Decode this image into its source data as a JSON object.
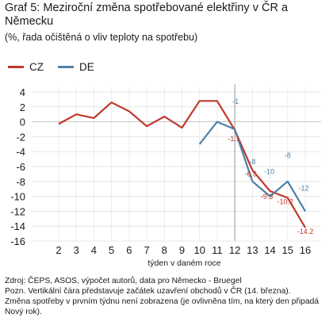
{
  "header": {
    "title": "Graf 5: Meziroční změna spotřebované elektřiny v ČR a Německu",
    "subtitle": "(%, řada očištěná o vliv teploty na spotřebu)"
  },
  "legend": [
    {
      "label": "CZ",
      "color": "#c0392b"
    },
    {
      "label": "DE",
      "color": "#4f7fa6"
    }
  ],
  "footnotes": {
    "source": "Zdroj: ČEPS, ASOS, výpočet autorů, data pro Německo - Bruegel",
    "note1": "Pozn. Vertikální čára představuje začátek uzavření obchodů v ČR (14. března).",
    "note2": "Změna spotřeby v prvním týdnu není zobrazena (je ovlivněna tím, na který den připadá Nový rok)."
  },
  "chart_data": {
    "type": "line",
    "xlabel": "týden v daném roce",
    "ylabel": "",
    "x": [
      2,
      3,
      4,
      5,
      6,
      7,
      8,
      9,
      10,
      11,
      12,
      13,
      14,
      15,
      16
    ],
    "xlim": [
      2,
      16
    ],
    "ylim": [
      -16,
      4
    ],
    "y_ticks": [
      4,
      2,
      0,
      -2,
      -4,
      -6,
      -8,
      -10,
      -12,
      -14,
      -16
    ],
    "vline_x": 12,
    "grid": "horizontal and vertical",
    "series": [
      {
        "name": "CZ",
        "color": "#c0392b",
        "x": [
          2,
          3,
          4,
          5,
          6,
          7,
          8,
          9,
          10,
          11,
          12,
          13,
          14,
          15,
          16
        ],
        "values": [
          -0.3,
          1.0,
          0.5,
          2.6,
          1.4,
          -0.6,
          0.7,
          -0.8,
          2.8,
          2.8,
          -1.1,
          -6.5,
          -9.3,
          -10.2,
          -14.2
        ],
        "labels": [
          {
            "x": 12,
            "text": "-1.1"
          },
          {
            "x": 13,
            "text": "-6.5"
          },
          {
            "x": 14,
            "text": "-9.3"
          },
          {
            "x": 15,
            "text": "-10.2"
          },
          {
            "x": 16,
            "text": "-14.2"
          }
        ]
      },
      {
        "name": "DE",
        "color": "#4f7fa6",
        "x": [
          10,
          11,
          12,
          13,
          14,
          15,
          16
        ],
        "values": [
          -3.0,
          0.0,
          -1.0,
          -8.0,
          -10.0,
          -8.0,
          -12.0
        ],
        "labels": [
          {
            "x": 12,
            "text": "-1"
          },
          {
            "x": 13,
            "text": "-8"
          },
          {
            "x": 14,
            "text": "-10"
          },
          {
            "x": 15,
            "text": "-8"
          },
          {
            "x": 16,
            "text": "-12"
          }
        ]
      }
    ]
  }
}
